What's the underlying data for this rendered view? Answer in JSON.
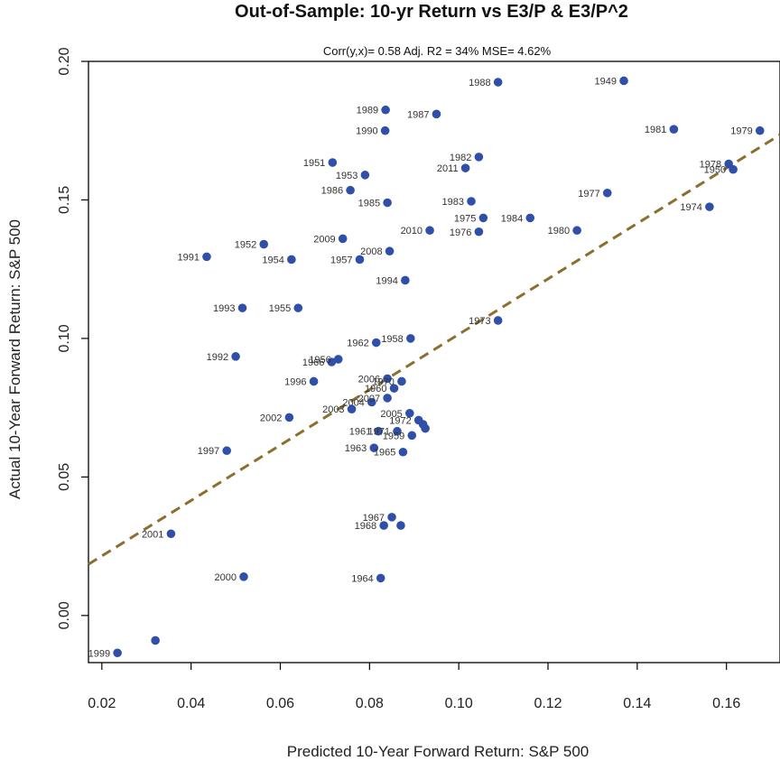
{
  "chart_data": {
    "type": "scatter",
    "title": "Out-of-Sample: 10-yr Return vs E3/P & E3/P^2",
    "subtitle": "Corr(y,x)= 0.58  Adj. R2 = 34%   MSE= 4.62%",
    "xlabel": "Predicted 10-Year Forward Return: S&P 500",
    "ylabel": "Actual 10-Year Forward Return: S&P 500",
    "xlim": [
      0.017,
      0.172
    ],
    "ylim": [
      -0.017,
      0.2
    ],
    "xticks": [
      "0.02",
      "0.04",
      "0.06",
      "0.08",
      "0.10",
      "0.12",
      "0.14",
      "0.16"
    ],
    "yticks": [
      "0.00",
      "0.05",
      "0.10",
      "0.15",
      "0.20"
    ],
    "point_color": "#2f4fa8",
    "trend_color": "#8c6f2e",
    "trend_line": {
      "x": [
        0.017,
        0.172
      ],
      "y": [
        0.0185,
        0.1735
      ]
    },
    "points": [
      {
        "x": 0.0235,
        "y": -0.0135,
        "label": "1999"
      },
      {
        "x": 0.032,
        "y": -0.009,
        "label": ""
      },
      {
        "x": 0.0355,
        "y": 0.0295,
        "label": "2001"
      },
      {
        "x": 0.0435,
        "y": 0.1295,
        "label": "1991"
      },
      {
        "x": 0.048,
        "y": 0.0595,
        "label": "1997"
      },
      {
        "x": 0.05,
        "y": 0.0935,
        "label": "1992"
      },
      {
        "x": 0.0515,
        "y": 0.111,
        "label": "1993"
      },
      {
        "x": 0.0518,
        "y": 0.014,
        "label": "2000"
      },
      {
        "x": 0.0563,
        "y": 0.134,
        "label": "1952"
      },
      {
        "x": 0.062,
        "y": 0.0715,
        "label": "2002"
      },
      {
        "x": 0.0625,
        "y": 0.1285,
        "label": "1954"
      },
      {
        "x": 0.064,
        "y": 0.111,
        "label": "1955"
      },
      {
        "x": 0.0675,
        "y": 0.0845,
        "label": "1996"
      },
      {
        "x": 0.0715,
        "y": 0.0915,
        "label": "1966"
      },
      {
        "x": 0.0717,
        "y": 0.1635,
        "label": "1951"
      },
      {
        "x": 0.073,
        "y": 0.0925,
        "label": "1956"
      },
      {
        "x": 0.074,
        "y": 0.136,
        "label": "2009"
      },
      {
        "x": 0.0757,
        "y": 0.1535,
        "label": "1986"
      },
      {
        "x": 0.076,
        "y": 0.0745,
        "label": "2003"
      },
      {
        "x": 0.0778,
        "y": 0.1285,
        "label": "1957"
      },
      {
        "x": 0.079,
        "y": 0.159,
        "label": "1953"
      },
      {
        "x": 0.0805,
        "y": 0.077,
        "label": "2004"
      },
      {
        "x": 0.081,
        "y": 0.0605,
        "label": "1963"
      },
      {
        "x": 0.0815,
        "y": 0.0985,
        "label": "1962"
      },
      {
        "x": 0.082,
        "y": 0.0665,
        "label": "1961"
      },
      {
        "x": 0.0825,
        "y": 0.0135,
        "label": "1964"
      },
      {
        "x": 0.0832,
        "y": 0.0325,
        "label": "1968"
      },
      {
        "x": 0.0835,
        "y": 0.175,
        "label": "1990"
      },
      {
        "x": 0.0836,
        "y": 0.1825,
        "label": "1989"
      },
      {
        "x": 0.084,
        "y": 0.0785,
        "label": "2007"
      },
      {
        "x": 0.084,
        "y": 0.0855,
        "label": "2006"
      },
      {
        "x": 0.084,
        "y": 0.149,
        "label": "1985"
      },
      {
        "x": 0.0845,
        "y": 0.1315,
        "label": "2008"
      },
      {
        "x": 0.085,
        "y": 0.0355,
        "label": "1967"
      },
      {
        "x": 0.0855,
        "y": 0.082,
        "label": "1960"
      },
      {
        "x": 0.0862,
        "y": 0.0665,
        "label": "1971"
      },
      {
        "x": 0.087,
        "y": 0.0325,
        "label": ""
      },
      {
        "x": 0.0872,
        "y": 0.0845,
        "label": "1970"
      },
      {
        "x": 0.0875,
        "y": 0.059,
        "label": "1965"
      },
      {
        "x": 0.088,
        "y": 0.121,
        "label": "1994"
      },
      {
        "x": 0.089,
        "y": 0.073,
        "label": "2005"
      },
      {
        "x": 0.0892,
        "y": 0.1,
        "label": "1958"
      },
      {
        "x": 0.0895,
        "y": 0.065,
        "label": "1959"
      },
      {
        "x": 0.091,
        "y": 0.0705,
        "label": "1972"
      },
      {
        "x": 0.092,
        "y": 0.069,
        "label": ""
      },
      {
        "x": 0.0925,
        "y": 0.0675,
        "label": ""
      },
      {
        "x": 0.0935,
        "y": 0.139,
        "label": "2010"
      },
      {
        "x": 0.095,
        "y": 0.181,
        "label": "1987"
      },
      {
        "x": 0.1015,
        "y": 0.1615,
        "label": "2011"
      },
      {
        "x": 0.1028,
        "y": 0.1495,
        "label": "1983"
      },
      {
        "x": 0.1045,
        "y": 0.1655,
        "label": "1982"
      },
      {
        "x": 0.1045,
        "y": 0.1385,
        "label": "1976"
      },
      {
        "x": 0.1055,
        "y": 0.1435,
        "label": "1975"
      },
      {
        "x": 0.1088,
        "y": 0.1925,
        "label": "1988"
      },
      {
        "x": 0.1088,
        "y": 0.1065,
        "label": "1973"
      },
      {
        "x": 0.116,
        "y": 0.1435,
        "label": "1984"
      },
      {
        "x": 0.1265,
        "y": 0.139,
        "label": "1980"
      },
      {
        "x": 0.1333,
        "y": 0.1525,
        "label": "1977"
      },
      {
        "x": 0.137,
        "y": 0.193,
        "label": "1949"
      },
      {
        "x": 0.1482,
        "y": 0.1755,
        "label": "1981"
      },
      {
        "x": 0.1562,
        "y": 0.1475,
        "label": "1974"
      },
      {
        "x": 0.1605,
        "y": 0.163,
        "label": "1978"
      },
      {
        "x": 0.1615,
        "y": 0.161,
        "label": "1950"
      },
      {
        "x": 0.1675,
        "y": 0.175,
        "label": "1979"
      }
    ]
  }
}
